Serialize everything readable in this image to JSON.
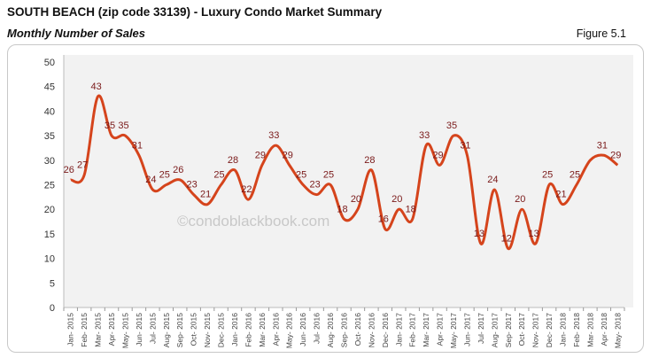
{
  "header": {
    "title": "SOUTH BEACH (zip code 33139) - Luxury Condo Market Summary",
    "subtitle": "Monthly Number of Sales",
    "figure": "Figure 5.1"
  },
  "watermark": "©condoblackbook.com",
  "chart_data": {
    "type": "line",
    "title": "",
    "xlabel": "",
    "ylabel": "",
    "ylim": [
      0,
      50
    ],
    "yticks": [
      0,
      5,
      10,
      15,
      20,
      25,
      30,
      35,
      40,
      45,
      50
    ],
    "grid": false,
    "smooth": true,
    "line_color": "#d5441c",
    "label_color": "#7a1a1a",
    "plot_background": "#f2f2f2",
    "categories": [
      "Jan- 2015",
      "Feb- 2015",
      "Mar- 2015",
      "Apr- 2015",
      "May- 2015",
      "Jun- 2015",
      "Jul- 2015",
      "Aug- 2015",
      "Sep- 2015",
      "Oct- 2015",
      "Nov- 2015",
      "Dec- 2015",
      "Jan- 2016",
      "Feb- 2016",
      "Mar- 2016",
      "Apr- 2016",
      "May- 2016",
      "Jun- 2016",
      "Jul- 2016",
      "Aug- 2016",
      "Sep- 2016",
      "Oct- 2016",
      "Nov- 2016",
      "Dec- 2016",
      "Jan- 2017",
      "Feb- 2017",
      "Mar- 2017",
      "Apr- 2017",
      "May- 2017",
      "Jun- 2017",
      "Jul- 2017",
      "Aug- 2017",
      "Sep- 2017",
      "Oct- 2017",
      "Nov- 2017",
      "Dec- 2017",
      "Jan- 2018",
      "Feb- 2018",
      "Mar- 2018",
      "Apr- 2018",
      "May- 2018"
    ],
    "values": [
      26,
      27,
      43,
      35,
      35,
      31,
      24,
      25,
      26,
      23,
      21,
      25,
      28,
      22,
      29,
      33,
      29,
      25,
      23,
      25,
      18,
      20,
      28,
      16,
      20,
      18,
      33,
      29,
      35,
      31,
      13,
      24,
      12,
      20,
      13,
      25,
      21,
      25,
      30,
      31,
      29
    ],
    "data_labels": [
      "26",
      "27",
      "43",
      "35",
      "35",
      "31",
      "24",
      "25",
      "26",
      "23",
      "21",
      "25",
      "28",
      "22",
      "29",
      "33",
      "29",
      "25",
      "23",
      "25",
      "18",
      "20",
      "28",
      "16",
      "20",
      "18",
      "33",
      "29",
      "35",
      "31",
      "13",
      "24",
      "12",
      "20",
      "13",
      "25",
      "21",
      "25",
      null,
      "31",
      "29"
    ]
  }
}
